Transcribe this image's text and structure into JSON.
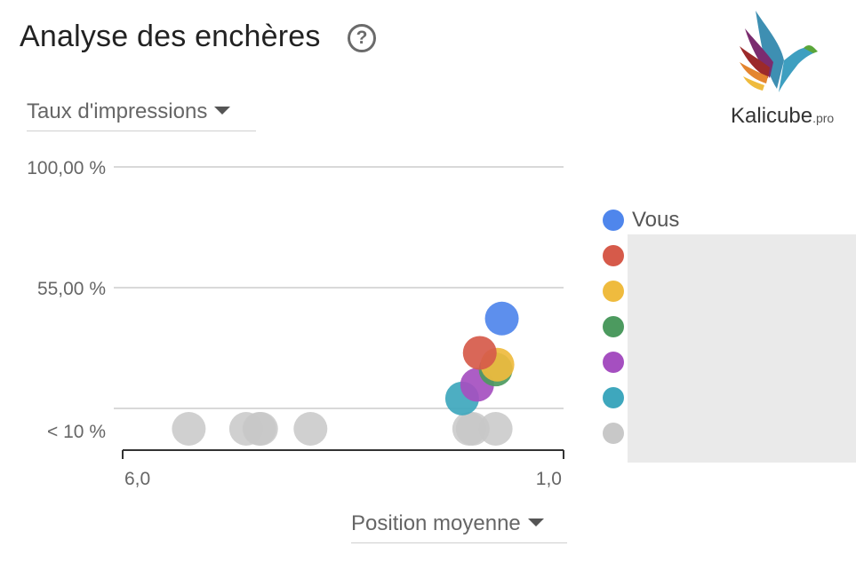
{
  "header": {
    "title": "Analyse des enchères",
    "help_icon": "help-circle-icon"
  },
  "controls": {
    "metric_dropdown": "Taux d'impressions",
    "xaxis_dropdown": "Position moyenne"
  },
  "logo": {
    "name": "Kalicube",
    "suffix": ".pro"
  },
  "chart_data": {
    "type": "scatter",
    "title": "",
    "xlabel": "Position moyenne",
    "ylabel": "Taux d'impressions",
    "x_reversed": true,
    "xlim": [
      6.0,
      1.0
    ],
    "y_ticks": [
      {
        "value": 100,
        "label": "100,00 %"
      },
      {
        "value": 55,
        "label": "55,00 %"
      },
      {
        "value": 10,
        "label": "< 10 %"
      }
    ],
    "x_ticks": [
      {
        "value": 6.0,
        "label": "6,0"
      },
      {
        "value": 1.0,
        "label": "1,0"
      }
    ],
    "grid": true,
    "legend_position": "right",
    "series": [
      {
        "name": "Vous",
        "color": "#4f86ec",
        "points": [
          {
            "x": 1.7,
            "y": 43.5
          }
        ]
      },
      {
        "name": "",
        "color": "#d65a4a",
        "points": [
          {
            "x": 1.95,
            "y": 30.7
          }
        ]
      },
      {
        "name": "",
        "color": "#efbb3e",
        "points": [
          {
            "x": 1.75,
            "y": 26.3
          }
        ]
      },
      {
        "name": "",
        "color": "#4c9a5f",
        "points": [
          {
            "x": 1.77,
            "y": 24.5
          }
        ]
      },
      {
        "name": "",
        "color": "#a54fc0",
        "points": [
          {
            "x": 1.98,
            "y": 18.8
          }
        ]
      },
      {
        "name": "",
        "color": "#3ea7bd",
        "points": [
          {
            "x": 2.15,
            "y": 13.7
          }
        ]
      },
      {
        "name": "",
        "color": "#c8c8c8",
        "points": [
          {
            "x": 5.25,
            "y": 10
          },
          {
            "x": 4.6,
            "y": 10
          },
          {
            "x": 4.45,
            "y": 10
          },
          {
            "x": 4.43,
            "y": 10
          },
          {
            "x": 3.87,
            "y": 10
          },
          {
            "x": 2.07,
            "y": 10
          },
          {
            "x": 2.03,
            "y": 10
          },
          {
            "x": 1.77,
            "y": 10
          }
        ]
      }
    ]
  }
}
